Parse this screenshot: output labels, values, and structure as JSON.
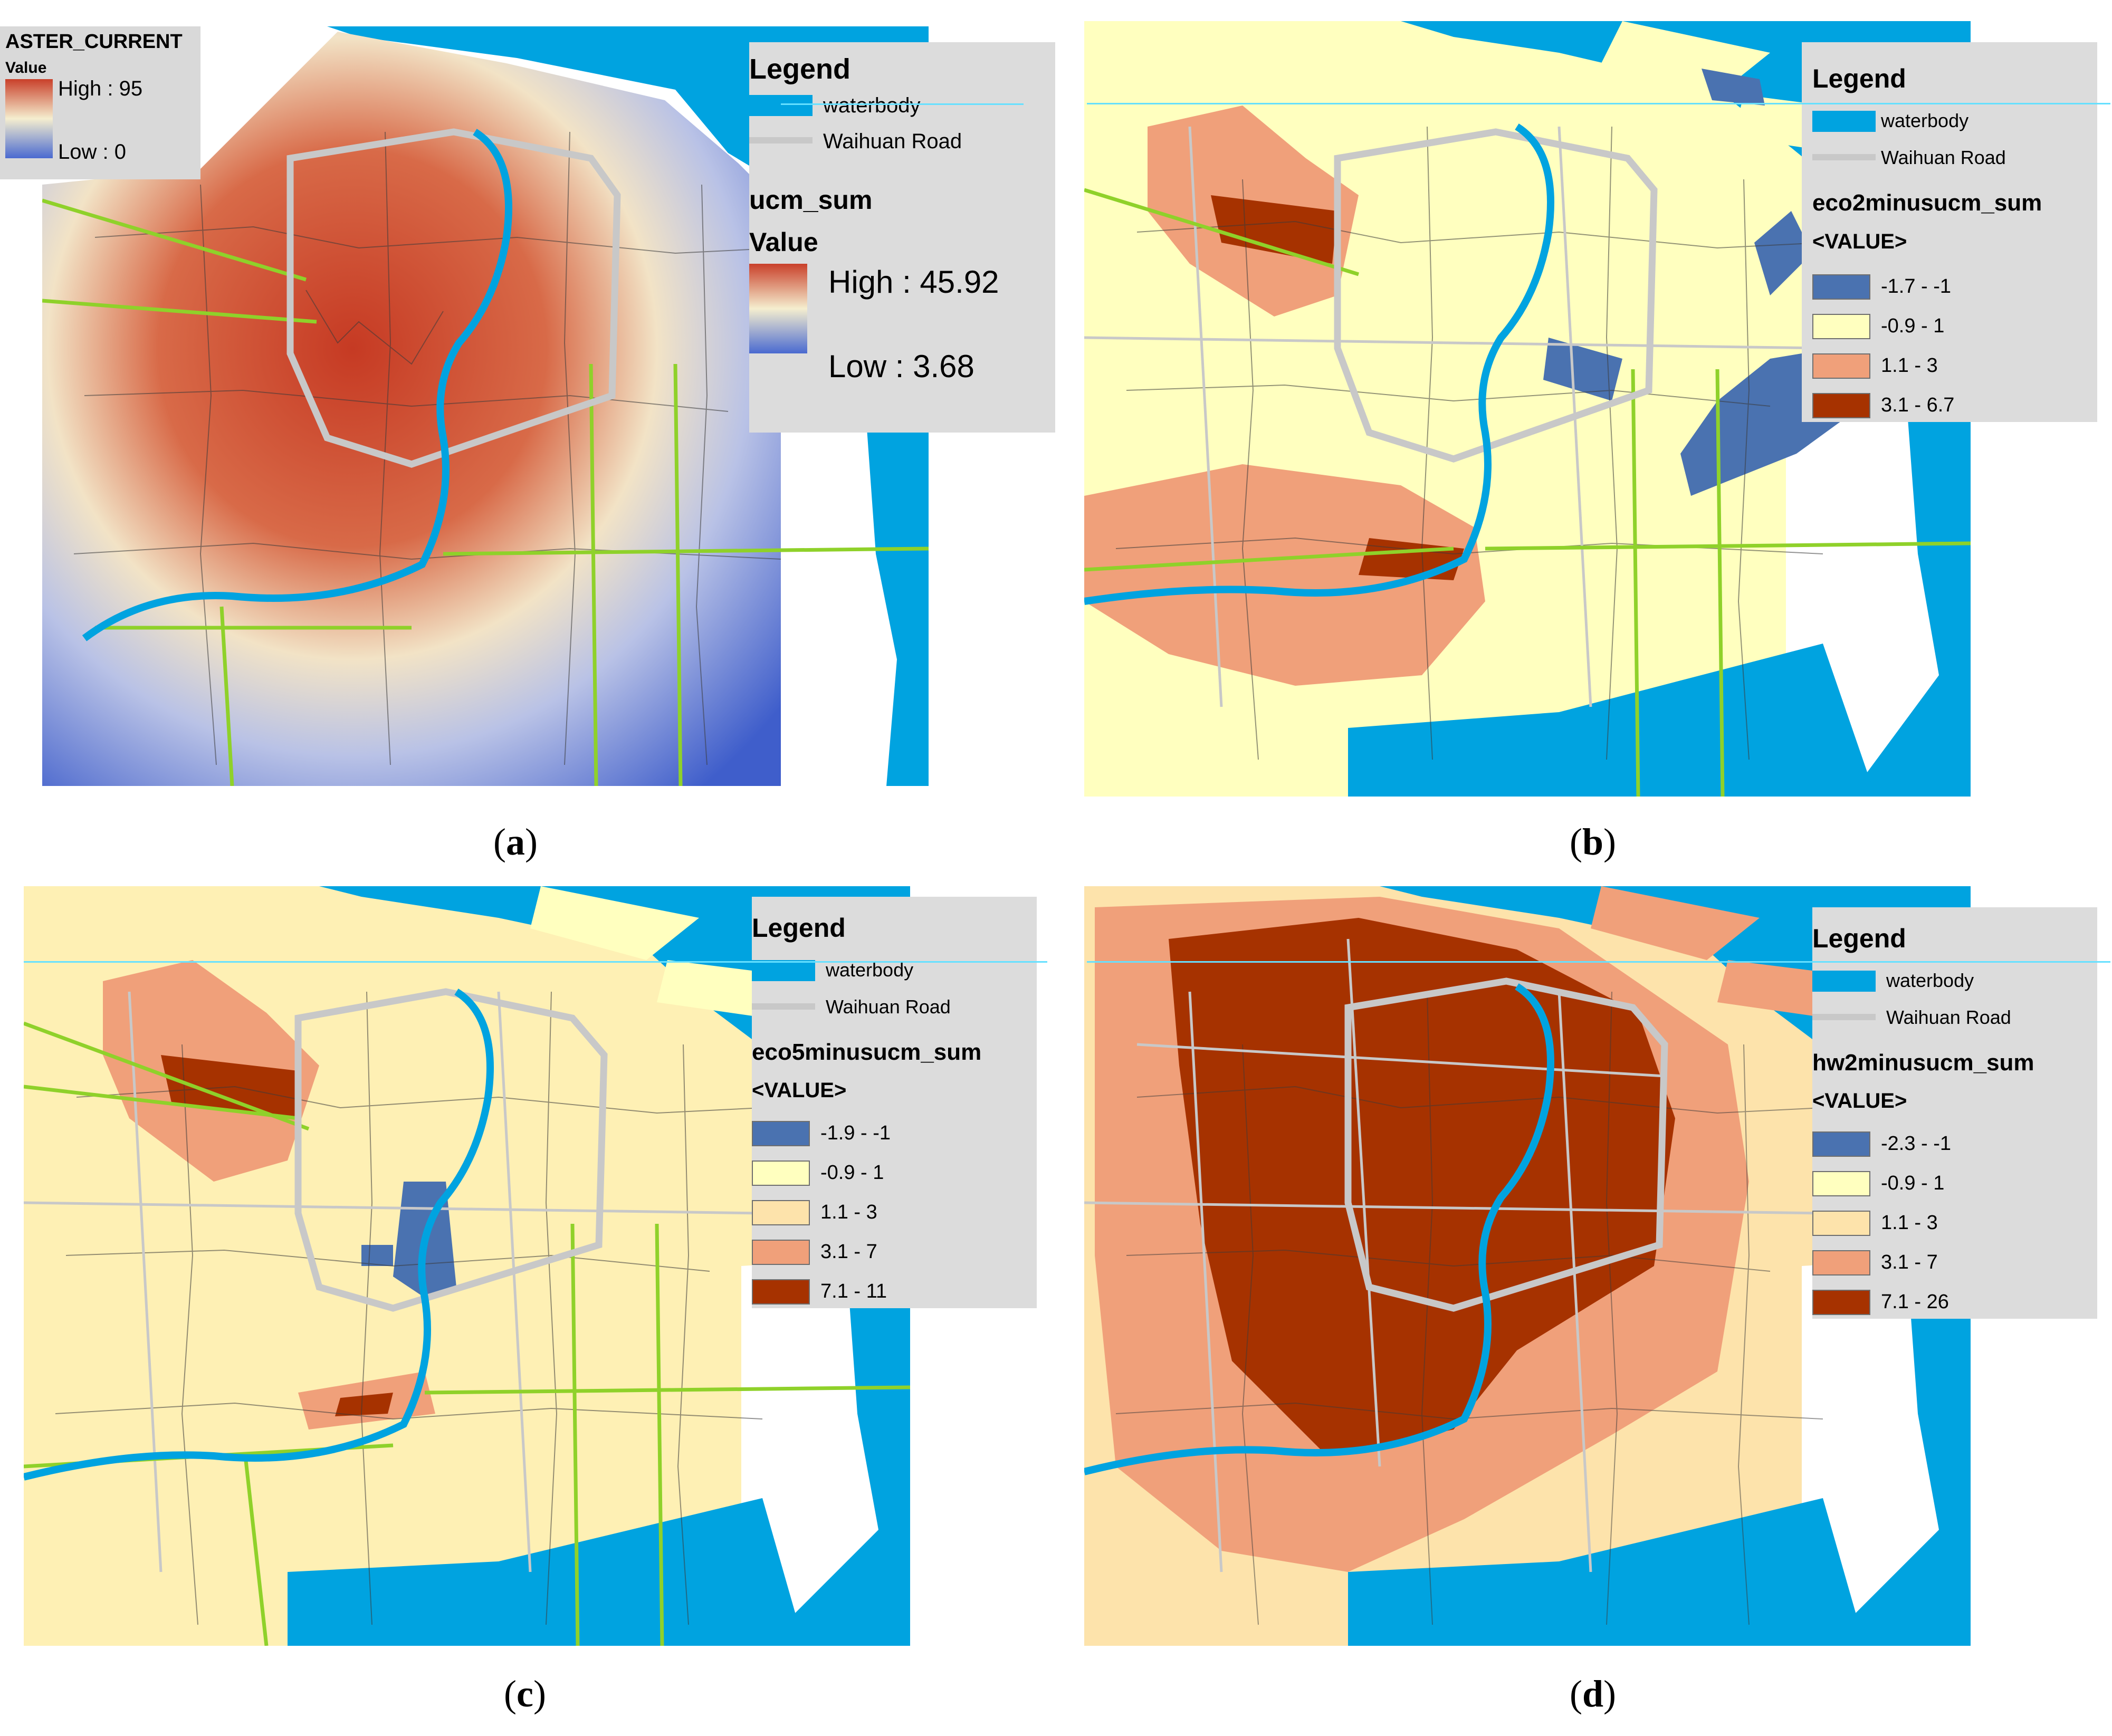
{
  "colors": {
    "water": "#00a3e0",
    "waihuan": "#c8c8c8",
    "road_green": "#8fd12a",
    "boundary": "#3a3a3a",
    "legend_bg": "#dcdcdc",
    "class_neg": "#4a72b0",
    "class_zero": "#ffffbf",
    "class_low": "#fde3ab",
    "class_mid": "#f0a07a",
    "class_high": "#a63200",
    "ucm_high": "#c9402a",
    "ucm_low": "#4a6ad0"
  },
  "panels": [
    {
      "id": "a",
      "caption": "a",
      "aster": {
        "title": "ASTER_CURRENT",
        "value_label": "Value",
        "high": "High : 95",
        "low": "Low : 0"
      },
      "legend": {
        "title": "Legend",
        "waterbody": "waterbody",
        "road": "Waihuan Road",
        "field": "ucm_sum",
        "value_label": "Value",
        "high": "High : 45.92",
        "low": "Low : 3.68"
      }
    },
    {
      "id": "b",
      "caption": "b",
      "legend": {
        "title": "Legend",
        "waterbody": "waterbody",
        "road": "Waihuan Road",
        "field": "eco2minusucm_sum",
        "value_tag": "<VALUE>",
        "classes": [
          "-1.7 - -1",
          "-0.9 - 1",
          "1.1 - 3",
          "3.1 - 6.7"
        ]
      }
    },
    {
      "id": "c",
      "caption": "c",
      "legend": {
        "title": "Legend",
        "waterbody": "waterbody",
        "road": "Waihuan Road",
        "field": "eco5minusucm_sum",
        "value_tag": "<VALUE>",
        "classes": [
          "-1.9 - -1",
          "-0.9 - 1",
          "1.1 - 3",
          "3.1 - 7",
          "7.1 - 11"
        ]
      }
    },
    {
      "id": "d",
      "caption": "d",
      "legend": {
        "title": "Legend",
        "waterbody": "waterbody",
        "road": "Waihuan Road",
        "field": "hw2minusucm_sum",
        "value_tag": "<VALUE>",
        "classes": [
          "-2.3 - -1",
          "-0.9 - 1",
          "1.1 - 3",
          "3.1 - 7",
          "7.1 - 26"
        ]
      }
    }
  ]
}
